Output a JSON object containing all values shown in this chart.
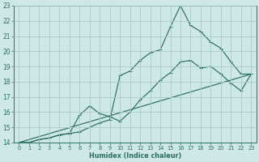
{
  "xlabel": "Humidex (Indice chaleur)",
  "bg_color": "#cde8e5",
  "grid_color": "#a8ccc9",
  "line_color": "#2a6e65",
  "xlim": [
    -0.5,
    23.5
  ],
  "ylim": [
    14,
    23
  ],
  "xticks": [
    0,
    1,
    2,
    3,
    4,
    5,
    6,
    7,
    8,
    9,
    10,
    11,
    12,
    13,
    14,
    15,
    16,
    17,
    18,
    19,
    20,
    21,
    22,
    23
  ],
  "yticks": [
    14,
    15,
    16,
    17,
    18,
    19,
    20,
    21,
    22,
    23
  ],
  "line1_x": [
    0,
    1,
    2,
    3,
    4,
    5,
    6,
    7,
    8,
    9,
    10,
    11,
    12,
    13,
    14,
    15,
    16,
    17,
    18,
    19,
    20,
    21,
    22,
    23
  ],
  "line1_y": [
    14,
    14,
    14.2,
    14.3,
    14.5,
    14.6,
    14.7,
    15.0,
    15.3,
    15.5,
    18.4,
    18.7,
    19.4,
    19.9,
    20.1,
    21.6,
    23.0,
    21.7,
    21.3,
    20.6,
    20.2,
    19.3,
    18.5,
    18.5
  ],
  "line2_x": [
    0,
    1,
    2,
    3,
    4,
    5,
    6,
    7,
    8,
    9,
    10,
    11,
    12,
    13,
    14,
    15,
    16,
    17,
    18,
    19,
    20,
    21,
    22,
    23
  ],
  "line2_y": [
    14,
    14,
    14.2,
    14.3,
    14.5,
    14.6,
    15.8,
    16.4,
    15.9,
    15.7,
    15.4,
    16.0,
    16.8,
    17.4,
    18.1,
    18.6,
    19.3,
    19.4,
    18.9,
    19.0,
    18.5,
    17.9,
    17.4,
    18.5
  ],
  "line3_x": [
    0,
    23
  ],
  "line3_y": [
    14,
    18.5
  ]
}
